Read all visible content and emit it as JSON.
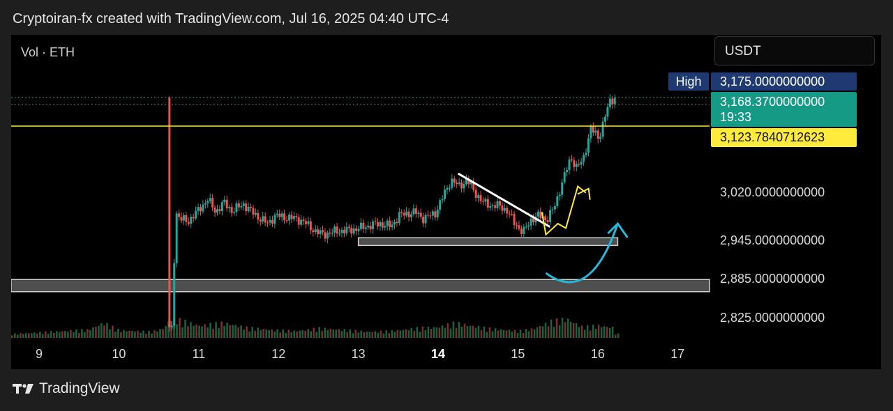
{
  "header": {
    "title": "Cryptoiran-fx created with TradingView.com, Jul 16, 2025 04:40 UTC-4"
  },
  "panel": {
    "vol_label": "Vol · ETH",
    "currency": "USDT"
  },
  "footer": {
    "brand": "TradingView",
    "logo_icon": "tradingview-logo-icon"
  },
  "colors": {
    "up": "#26a69a",
    "down": "#ef5350",
    "level": "#ffeb3b",
    "arrow": "#29b6d8",
    "trendline": "#ffffff"
  },
  "price_tags": {
    "high_name": "High",
    "high_value": "3,175.0000000000",
    "last_value": "3,168.3700000000",
    "countdown": "19:33",
    "level_value": "3,123.7840712623"
  },
  "chart_data": {
    "type": "candlestick",
    "symbol": "ETH",
    "quote": "USDT",
    "x_ticks": [
      {
        "label": "9",
        "day": 9,
        "bold": false
      },
      {
        "label": "10",
        "day": 10,
        "bold": false
      },
      {
        "label": "11",
        "day": 11,
        "bold": false
      },
      {
        "label": "12",
        "day": 12,
        "bold": false
      },
      {
        "label": "13",
        "day": 13,
        "bold": false
      },
      {
        "label": "14",
        "day": 14,
        "bold": true
      },
      {
        "label": "15",
        "day": 15,
        "bold": false
      },
      {
        "label": "16",
        "day": 16,
        "bold": false
      },
      {
        "label": "17",
        "day": 17,
        "bold": false
      }
    ],
    "y_ticks": [
      {
        "label": "3,020.0000000000",
        "value": 3020
      },
      {
        "label": "2,945.0000000000",
        "value": 2945
      },
      {
        "label": "2,885.0000000000",
        "value": 2885
      },
      {
        "label": "2,825.0000000000",
        "value": 2825
      }
    ],
    "ylim": [
      2805,
      3190
    ],
    "xlim": [
      8.65,
      17.4
    ],
    "price_points": [
      [
        8.7,
        2805
      ],
      [
        9.5,
        2805
      ],
      [
        10.5,
        2805
      ],
      [
        10.65,
        2808
      ],
      [
        10.7,
        2990
      ],
      [
        10.75,
        2980
      ],
      [
        10.85,
        2975
      ],
      [
        11,
        2995
      ],
      [
        11.1,
        3010
      ],
      [
        11.2,
        2990
      ],
      [
        11.3,
        3005
      ],
      [
        11.4,
        2992
      ],
      [
        11.55,
        3002
      ],
      [
        11.7,
        2985
      ],
      [
        11.85,
        2972
      ],
      [
        11.95,
        2985
      ],
      [
        12.05,
        2982
      ],
      [
        12.2,
        2980
      ],
      [
        12.3,
        2975
      ],
      [
        12.45,
        2960
      ],
      [
        12.55,
        2955
      ],
      [
        12.7,
        2960
      ],
      [
        12.9,
        2962
      ],
      [
        13.1,
        2968
      ],
      [
        13.25,
        2972
      ],
      [
        13.4,
        2968
      ],
      [
        13.5,
        2985
      ],
      [
        13.7,
        2990
      ],
      [
        13.8,
        2980
      ],
      [
        13.95,
        2988
      ],
      [
        14.05,
        3015
      ],
      [
        14.15,
        3040
      ],
      [
        14.25,
        3030
      ],
      [
        14.35,
        3040
      ],
      [
        14.45,
        3020
      ],
      [
        14.55,
        3005
      ],
      [
        14.65,
        3000
      ],
      [
        14.75,
        3000
      ],
      [
        14.85,
        2992
      ],
      [
        14.95,
        2972
      ],
      [
        15.05,
        2958
      ],
      [
        15.15,
        2978
      ],
      [
        15.25,
        2985
      ],
      [
        15.35,
        2978
      ],
      [
        15.45,
        3000
      ],
      [
        15.55,
        3040
      ],
      [
        15.65,
        3075
      ],
      [
        15.72,
        3060
      ],
      [
        15.8,
        3070
      ],
      [
        15.9,
        3120
      ],
      [
        16.0,
        3105
      ],
      [
        16.08,
        3140
      ],
      [
        16.14,
        3162
      ],
      [
        16.2,
        3168
      ]
    ],
    "volume_bars": [
      [
        8.7,
        6
      ],
      [
        9.0,
        8
      ],
      [
        9.3,
        10
      ],
      [
        9.6,
        12
      ],
      [
        9.8,
        22
      ],
      [
        10.0,
        11
      ],
      [
        10.2,
        10
      ],
      [
        10.4,
        9
      ],
      [
        10.55,
        14
      ],
      [
        10.65,
        30
      ],
      [
        10.75,
        26
      ],
      [
        11.0,
        18
      ],
      [
        11.3,
        22
      ],
      [
        11.6,
        15
      ],
      [
        11.9,
        12
      ],
      [
        12.2,
        10
      ],
      [
        12.5,
        14
      ],
      [
        12.8,
        12
      ],
      [
        13.1,
        9
      ],
      [
        13.4,
        10
      ],
      [
        13.7,
        14
      ],
      [
        14.0,
        16
      ],
      [
        14.2,
        22
      ],
      [
        14.4,
        18
      ],
      [
        14.6,
        14
      ],
      [
        14.8,
        12
      ],
      [
        15.0,
        10
      ],
      [
        15.2,
        14
      ],
      [
        15.4,
        24
      ],
      [
        15.6,
        28
      ],
      [
        15.8,
        16
      ],
      [
        16.0,
        18
      ],
      [
        16.2,
        15
      ]
    ],
    "horizontal_levels": [
      {
        "name": "resistance",
        "value": 3123.78
      },
      {
        "name": "last-price",
        "value": 3168.37
      },
      {
        "name": "high",
        "value": 3175
      }
    ],
    "zones": [
      {
        "name": "support-zone-upper",
        "from_day": 13.0,
        "to_day": 16.25,
        "low": 2938,
        "high": 2950
      },
      {
        "name": "support-zone-lower",
        "from_day": 8.65,
        "to_day": 17.4,
        "low": 2866,
        "high": 2885
      }
    ],
    "trendline": [
      [
        14.25,
        3050
      ],
      [
        15.4,
        2967
      ]
    ],
    "projection_path": [
      [
        15.3,
        2990
      ],
      [
        15.35,
        2955
      ],
      [
        15.5,
        2972
      ],
      [
        15.6,
        2965
      ],
      [
        15.75,
        3030
      ],
      [
        15.85,
        3020
      ]
    ],
    "curve_arrow": {
      "start": [
        15.35,
        2895
      ],
      "control": [
        15.9,
        2845
      ],
      "end": [
        16.25,
        2972
      ]
    }
  }
}
